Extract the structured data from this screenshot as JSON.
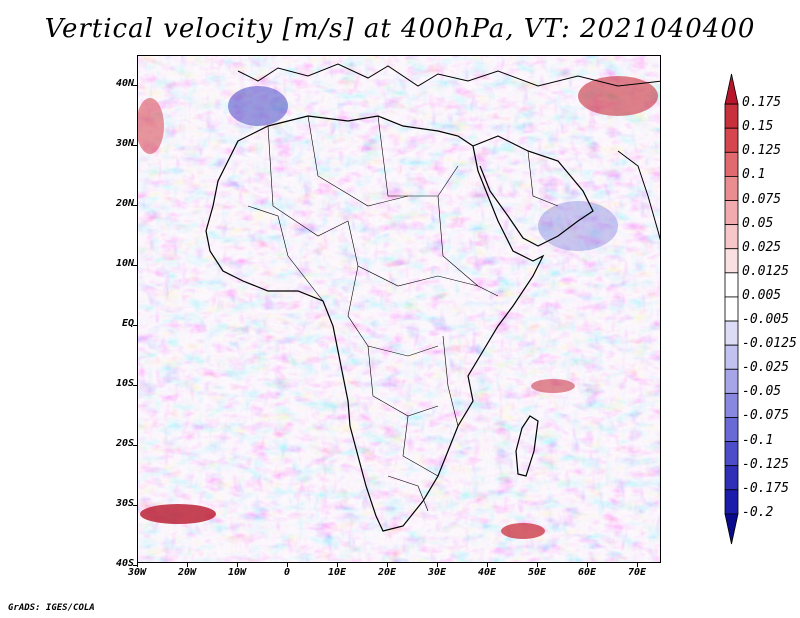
{
  "title": "Vertical velocity [m/s] at 400hPa, VT: 2021040400",
  "footer": "GrADS: IGES/COLA",
  "lat_labels": [
    "40N",
    "30N",
    "20N",
    "10N",
    "EQ",
    "10S",
    "20S",
    "30S",
    "40S"
  ],
  "lon_labels": [
    "30W",
    "20W",
    "10W",
    "0",
    "10E",
    "20E",
    "30E",
    "40E",
    "50E",
    "60E",
    "70E"
  ],
  "colorbar": {
    "labels": [
      "0.175",
      "0.15",
      "0.125",
      "0.1",
      "0.075",
      "0.05",
      "0.025",
      "0.0125",
      "0.005",
      "-0.005",
      "-0.0125",
      "-0.025",
      "-0.05",
      "-0.075",
      "-0.1",
      "-0.125",
      "-0.175",
      "-0.2"
    ],
    "colors": [
      "#b8172b",
      "#c8303c",
      "#d6464f",
      "#e06a70",
      "#ea8d91",
      "#f1aaae",
      "#f6c6c9",
      "#fbe0e2",
      "#ffffff",
      "#ffffff",
      "#dcdcf6",
      "#c2c2f0",
      "#a5a5e8",
      "#8888e0",
      "#6a6ad6",
      "#4d4dca",
      "#2f2fb8",
      "#1c1caa",
      "#0a0a8c"
    ]
  },
  "colors": {
    "positive": "#d6464f",
    "negative": "#5a5ad2",
    "coastline": "#000000"
  }
}
